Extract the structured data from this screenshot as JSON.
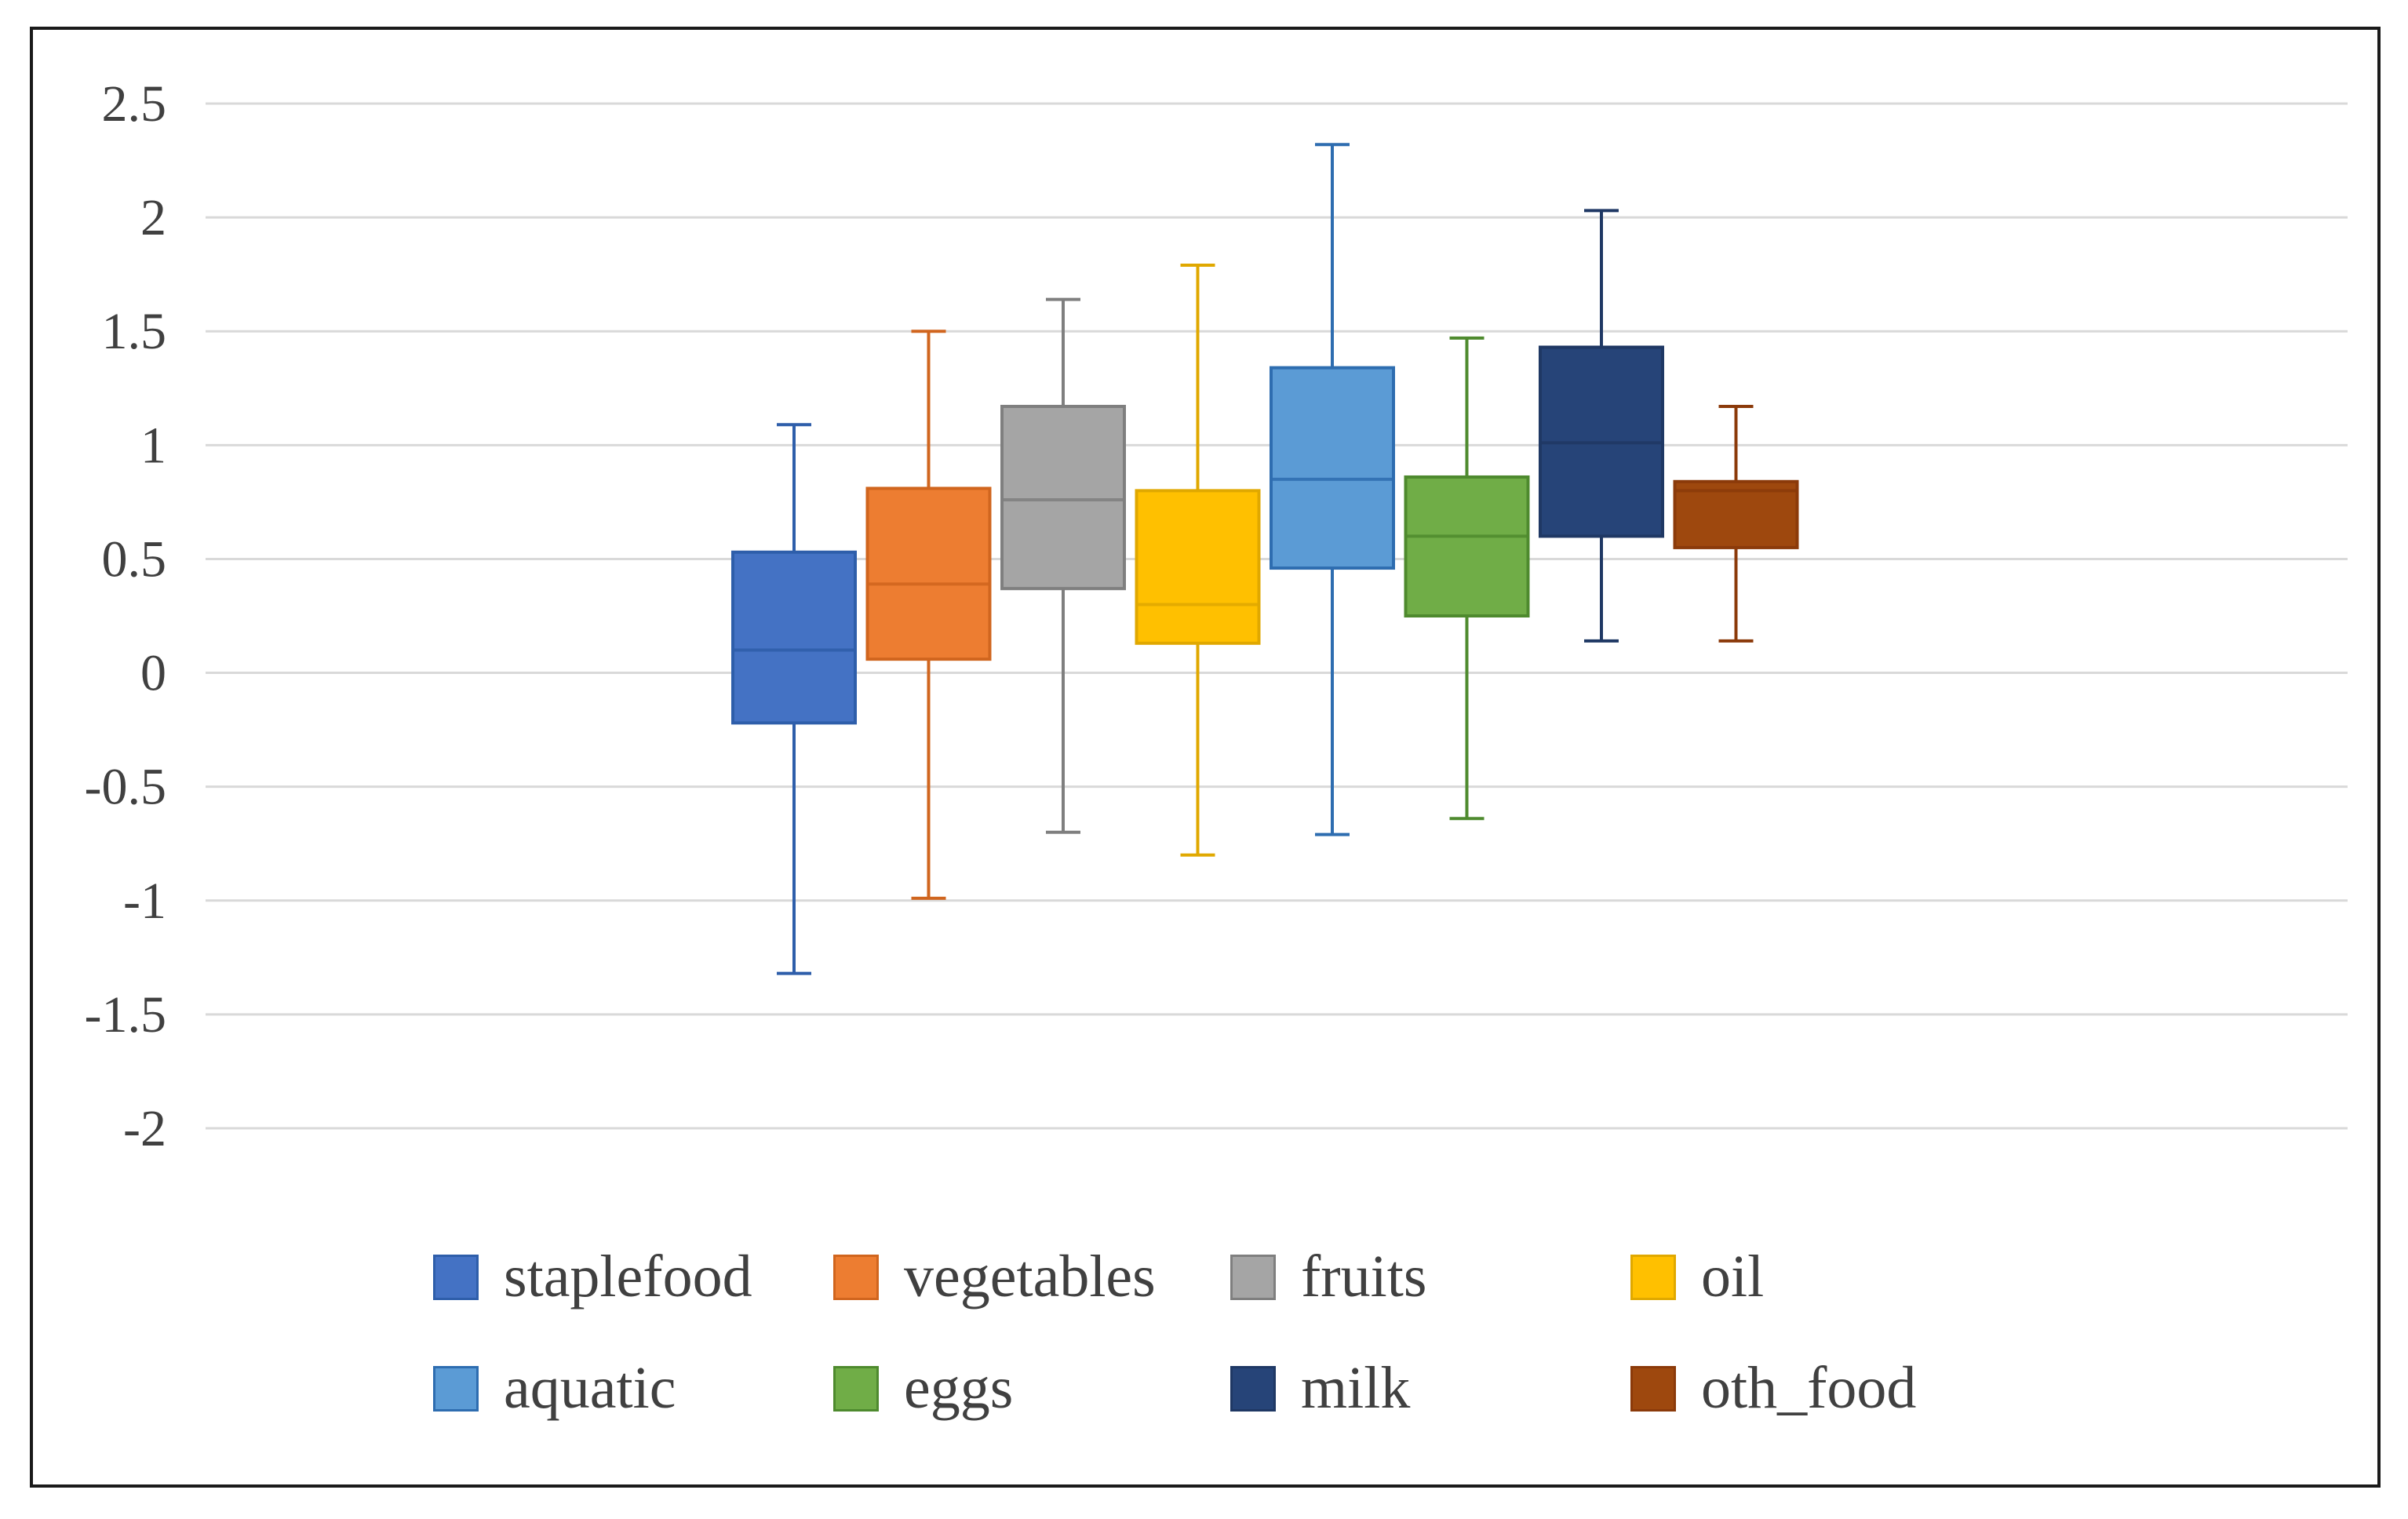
{
  "chart_data": {
    "type": "boxplot",
    "title": "",
    "xlabel": "",
    "ylabel": "",
    "ylim": [
      -2,
      2.5
    ],
    "yticks": [
      2.5,
      2,
      1.5,
      1,
      0.5,
      0,
      -0.5,
      -1,
      -1.5,
      -2
    ],
    "ytick_labels": [
      "2.5",
      "2",
      "1.5",
      "1",
      "0.5",
      "0",
      "-0.5",
      "-1",
      "-1.5",
      "-2"
    ],
    "grid": true,
    "legend_position": "bottom",
    "series": [
      {
        "name": "staplefood",
        "color": "#4472C4",
        "whisker_color": "#2E5EAA",
        "min": -1.32,
        "q1": -0.22,
        "median": 0.1,
        "q3": 0.53,
        "max": 1.09
      },
      {
        "name": "vegetables",
        "color": "#ED7D31",
        "whisker_color": "#D0651E",
        "min": -0.99,
        "q1": 0.06,
        "median": 0.39,
        "q3": 0.81,
        "max": 1.5
      },
      {
        "name": "fruits",
        "color": "#A5A5A5",
        "whisker_color": "#7F7F7F",
        "min": -0.7,
        "q1": 0.37,
        "median": 0.76,
        "q3": 1.17,
        "max": 1.64
      },
      {
        "name": "oil",
        "color": "#FFC000",
        "whisker_color": "#E0A800",
        "min": -0.8,
        "q1": 0.13,
        "median": 0.3,
        "q3": 0.8,
        "max": 1.79
      },
      {
        "name": "aquatic",
        "color": "#5B9BD5",
        "whisker_color": "#2E6DB0",
        "min": -0.71,
        "q1": 0.46,
        "median": 0.85,
        "q3": 1.34,
        "max": 2.32
      },
      {
        "name": "eggs",
        "color": "#70AD47",
        "whisker_color": "#4E8A2E",
        "min": -0.64,
        "q1": 0.25,
        "median": 0.6,
        "q3": 0.86,
        "max": 1.47
      },
      {
        "name": "milk",
        "color": "#264478",
        "whisker_color": "#1F3864",
        "min": 0.14,
        "q1": 0.6,
        "median": 1.01,
        "q3": 1.43,
        "max": 2.03
      },
      {
        "name": "oth_food",
        "color": "#9E480E",
        "whisker_color": "#8B3A0A",
        "min": 0.14,
        "q1": 0.55,
        "median": 0.8,
        "q3": 0.84,
        "max": 1.17
      }
    ]
  }
}
